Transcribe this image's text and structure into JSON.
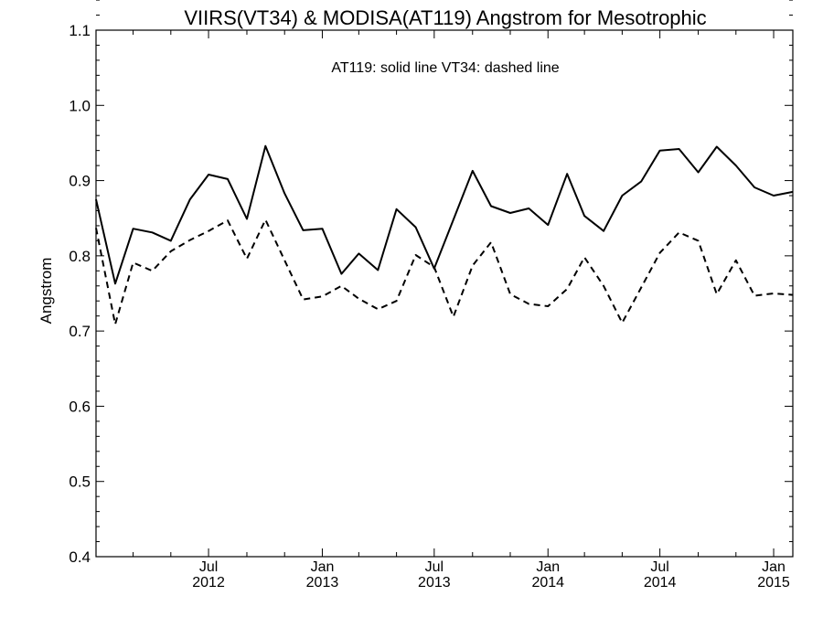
{
  "chart_data": {
    "type": "line",
    "title": "VIIRS(VT34) & MODISA(AT119)  Angstrom for Mesotrophic",
    "annotation": "AT119: solid line   VT34: dashed line",
    "xlabel": "",
    "ylabel": "Angstrom",
    "xlim": [
      "2012-01-01",
      "2015-02-01"
    ],
    "ylim": [
      0.4,
      1.1
    ],
    "yticks": [
      0.4,
      0.5,
      0.6,
      0.7,
      0.8,
      0.9,
      1.0,
      1.1
    ],
    "ytick_labels": [
      "0.4",
      "0.5",
      "0.6",
      "0.7",
      "0.8",
      "0.9",
      "1.0",
      "1.1"
    ],
    "xticks_major": [
      {
        "date": "2012-07-01",
        "line1": "Jul",
        "line2": "2012"
      },
      {
        "date": "2013-01-01",
        "line1": "Jan",
        "line2": "2013"
      },
      {
        "date": "2013-07-01",
        "line1": "Jul",
        "line2": "2013"
      },
      {
        "date": "2014-01-01",
        "line1": "Jan",
        "line2": "2014"
      },
      {
        "date": "2014-07-01",
        "line1": "Jul",
        "line2": "2014"
      },
      {
        "date": "2015-01-01",
        "line1": "Jan",
        "line2": "2015"
      }
    ],
    "xticks_minor": [
      "2012-03-01",
      "2012-05-01",
      "2012-09-01",
      "2012-11-01",
      "2013-03-01",
      "2013-05-01",
      "2013-09-01",
      "2013-11-01",
      "2014-03-01",
      "2014-05-01",
      "2014-09-01",
      "2014-11-01"
    ],
    "grid": false,
    "x": [
      "2012-01-01",
      "2012-02-01",
      "2012-03-01",
      "2012-04-01",
      "2012-05-01",
      "2012-06-01",
      "2012-07-01",
      "2012-08-01",
      "2012-09-01",
      "2012-10-01",
      "2012-11-01",
      "2012-12-01",
      "2013-01-01",
      "2013-02-01",
      "2013-03-01",
      "2013-04-01",
      "2013-05-01",
      "2013-06-01",
      "2013-07-01",
      "2013-08-01",
      "2013-09-01",
      "2013-10-01",
      "2013-11-01",
      "2013-12-01",
      "2014-01-01",
      "2014-02-01",
      "2014-03-01",
      "2014-04-01",
      "2014-05-01",
      "2014-06-01",
      "2014-07-01",
      "2014-08-01",
      "2014-09-01",
      "2014-10-01",
      "2014-11-01",
      "2014-12-01",
      "2015-01-01",
      "2015-02-01"
    ],
    "series": [
      {
        "name": "AT119",
        "style": "solid",
        "color": "#000000",
        "values": [
          0.875,
          0.763,
          0.836,
          0.831,
          0.82,
          0.875,
          0.908,
          0.902,
          0.849,
          0.946,
          0.883,
          0.834,
          0.836,
          0.776,
          0.803,
          0.781,
          0.862,
          0.838,
          0.783,
          0.848,
          0.913,
          0.866,
          0.857,
          0.863,
          0.841,
          0.909,
          0.853,
          0.833,
          0.88,
          0.899,
          0.94,
          0.942,
          0.911,
          0.945,
          0.92,
          0.891,
          0.88,
          0.885
        ]
      },
      {
        "name": "VT34",
        "style": "dashed",
        "color": "#000000",
        "values": [
          0.837,
          0.709,
          0.791,
          0.78,
          0.806,
          0.821,
          0.833,
          0.847,
          0.796,
          0.848,
          0.794,
          0.742,
          0.746,
          0.76,
          0.743,
          0.729,
          0.74,
          0.801,
          0.785,
          0.719,
          0.787,
          0.818,
          0.749,
          0.736,
          0.733,
          0.756,
          0.798,
          0.76,
          0.711,
          0.758,
          0.804,
          0.831,
          0.82,
          0.749,
          0.794,
          0.747,
          0.75,
          0.748
        ]
      }
    ]
  }
}
